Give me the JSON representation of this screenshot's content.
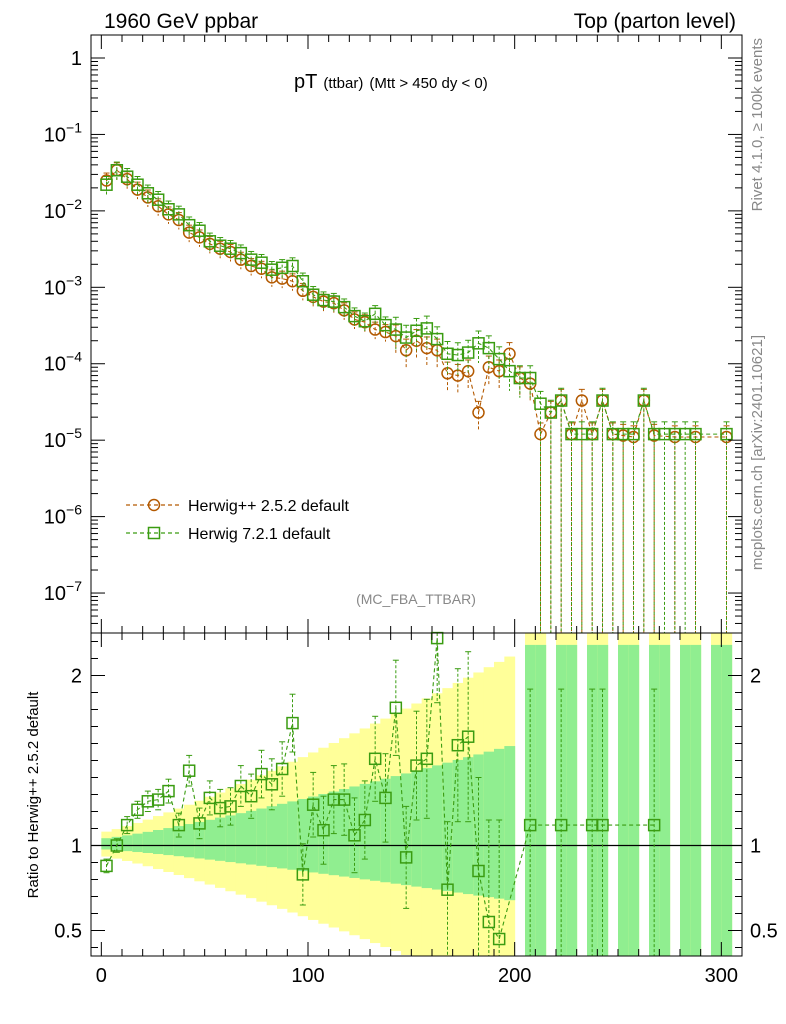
{
  "header": {
    "left": "1960 GeV ppbar",
    "right": "Top (parton level)"
  },
  "side": {
    "top_note": "Rivet 4.1.0, ≥ 100k events",
    "bottom_note": "mcplots.cern.ch [arXiv:2401.10621]"
  },
  "chart_data": [
    {
      "panel": "main",
      "type": "scatter",
      "title": "pT",
      "title_small": "(ttbar)",
      "title_cut": "(Mtt > 450 dy < 0)",
      "analysis_tag": "(MC_FBA_TTBAR)",
      "yscale": "log",
      "ylim": [
        3e-08,
        2
      ],
      "xlim": [
        -5,
        310
      ],
      "yticks": [
        1e-07,
        1e-06,
        1e-05,
        0.0001,
        0.001,
        0.01,
        0.1,
        1
      ],
      "ytick_labels": [
        {
          "base": "10",
          "exp": "−7"
        },
        {
          "base": "10",
          "exp": "−6"
        },
        {
          "base": "10",
          "exp": "−5"
        },
        {
          "base": "10",
          "exp": "−4"
        },
        {
          "base": "10",
          "exp": "−3"
        },
        {
          "base": "10",
          "exp": "−2"
        },
        {
          "base": "10",
          "exp": "−1"
        },
        {
          "base": "1",
          "exp": ""
        }
      ],
      "legend": [
        {
          "label": "Herwig++ 2.5.2 default",
          "color": "#b35900",
          "marker": "circle"
        },
        {
          "label": "Herwig 7.2.1 default",
          "color": "#3a9c11",
          "marker": "square"
        }
      ],
      "legend_position": "lower-left",
      "series": [
        {
          "name": "Herwig++ 2.5.2 default",
          "color": "#b35900",
          "x": [
            2.5,
            7.5,
            12.5,
            17.5,
            22.5,
            27.5,
            32.5,
            37.5,
            42.5,
            47.5,
            52.5,
            57.5,
            62.5,
            67.5,
            72.5,
            77.5,
            82.5,
            87.5,
            92.5,
            97.5,
            102.5,
            107.5,
            112.5,
            117.5,
            122.5,
            127.5,
            132.5,
            137.5,
            142.5,
            147.5,
            152.5,
            157.5,
            162.5,
            167.5,
            172.5,
            177.5,
            182.5,
            187.5,
            192.5,
            197.5,
            202.5,
            207.5,
            212.5,
            217.5,
            222.5,
            227.5,
            232.5,
            237.5,
            242.5,
            247.5,
            252.5,
            257.5,
            262.5,
            267.5,
            277.5,
            287.5,
            302.5
          ],
          "y": [
            0.025,
            0.034,
            0.026,
            0.019,
            0.015,
            0.0115,
            0.009,
            0.0076,
            0.0052,
            0.0045,
            0.0037,
            0.0032,
            0.0029,
            0.0023,
            0.0019,
            0.00175,
            0.00135,
            0.0013,
            0.0012,
            0.0009,
            0.00075,
            0.00065,
            0.00062,
            0.0005,
            0.00038,
            0.00035,
            0.00028,
            0.00026,
            0.00023,
            0.00015,
            0.0002,
            0.00016,
            0.00015,
            7.5e-05,
            7e-05,
            8e-05,
            2.3e-05,
            9e-05,
            8e-05,
            0.000135,
            6.5e-05,
            5.5e-05,
            1.2e-05,
            2.3e-05,
            3.3e-05,
            1.2e-05,
            3.3e-05,
            1.2e-05,
            3.3e-05,
            1.2e-05,
            1.15e-05,
            1.1e-05,
            3.3e-05,
            1.15e-05,
            1.1e-05,
            1.1e-05,
            1.1e-05
          ],
          "err_rel": 0.25
        },
        {
          "name": "Herwig 7.2.1 default",
          "color": "#3a9c11",
          "x": [
            2.5,
            7.5,
            12.5,
            17.5,
            22.5,
            27.5,
            32.5,
            37.5,
            42.5,
            47.5,
            52.5,
            57.5,
            62.5,
            67.5,
            72.5,
            77.5,
            82.5,
            87.5,
            92.5,
            97.5,
            102.5,
            107.5,
            112.5,
            117.5,
            122.5,
            127.5,
            132.5,
            137.5,
            142.5,
            147.5,
            152.5,
            157.5,
            162.5,
            167.5,
            172.5,
            177.5,
            182.5,
            187.5,
            192.5,
            197.5,
            202.5,
            207.5,
            212.5,
            217.5,
            222.5,
            227.5,
            232.5,
            237.5,
            242.5,
            247.5,
            252.5,
            257.5,
            262.5,
            267.5,
            272.5,
            277.5,
            282.5,
            287.5,
            302.5
          ],
          "y": [
            0.022,
            0.034,
            0.028,
            0.022,
            0.017,
            0.014,
            0.0105,
            0.009,
            0.0065,
            0.0055,
            0.004,
            0.0035,
            0.0032,
            0.0028,
            0.0023,
            0.0021,
            0.0017,
            0.0018,
            0.0019,
            0.0012,
            0.0008,
            0.00068,
            0.00065,
            0.00055,
            0.00042,
            0.00036,
            0.00045,
            0.00032,
            0.00028,
            0.00022,
            0.00027,
            0.00029,
            0.00021,
            0.000135,
            0.00013,
            0.00014,
            0.000185,
            0.00016,
            0.000115,
            8e-05,
            6.5e-05,
            6.5e-05,
            3e-05,
            2.3e-05,
            3.3e-05,
            1.2e-05,
            1.2e-05,
            1.2e-05,
            3.3e-05,
            1.2e-05,
            1.2e-05,
            1.2e-05,
            3.3e-05,
            1.2e-05,
            1.2e-05,
            1.2e-05,
            1.2e-05,
            1.2e-05,
            1.2e-05
          ],
          "err_rel": 0.28
        }
      ]
    },
    {
      "panel": "ratio",
      "type": "scatter",
      "ylabel": "Ratio to Herwig++ 2.5.2 default",
      "xlabel": "",
      "ylim": [
        0.35,
        2.25
      ],
      "xlim": [
        -5,
        310
      ],
      "xticks": [
        0,
        100,
        200,
        300
      ],
      "xtick_labels": [
        "0",
        "100",
        "200",
        "300"
      ],
      "yticks": [
        0.5,
        1,
        2
      ],
      "ytick_labels": [
        "0.5",
        "1",
        "2"
      ],
      "reference_line": 1,
      "band_colors": {
        "inner": "#90ee90",
        "outer": "#ffff99"
      },
      "series": [
        {
          "name": "Herwig 7.2.1 default",
          "color": "#3a9c11",
          "x": [
            2.5,
            7.5,
            12.5,
            17.5,
            22.5,
            27.5,
            32.5,
            37.5,
            42.5,
            47.5,
            52.5,
            57.5,
            62.5,
            67.5,
            72.5,
            77.5,
            82.5,
            87.5,
            92.5,
            97.5,
            102.5,
            107.5,
            112.5,
            117.5,
            122.5,
            127.5,
            132.5,
            137.5,
            142.5,
            147.5,
            152.5,
            157.5,
            162.5,
            167.5,
            172.5,
            177.5,
            182.5,
            187.5,
            192.5,
            207.5,
            222.5,
            237.5,
            242.5,
            267.5
          ],
          "y": [
            0.88,
            1.0,
            1.12,
            1.21,
            1.26,
            1.27,
            1.32,
            1.12,
            1.44,
            1.13,
            1.28,
            1.22,
            1.23,
            1.35,
            1.29,
            1.42,
            1.36,
            1.45,
            1.72,
            0.83,
            1.24,
            1.09,
            1.27,
            1.27,
            1.06,
            1.15,
            1.51,
            1.28,
            1.81,
            0.93,
            1.47,
            1.51,
            2.22,
            0.74,
            1.59,
            1.64,
            0.85,
            0.55,
            0.45,
            1.12,
            1.12,
            1.12,
            1.12,
            1.12
          ],
          "err_abs": [
            0.04,
            0.04,
            0.05,
            0.05,
            0.06,
            0.06,
            0.07,
            0.07,
            0.09,
            0.09,
            0.1,
            0.11,
            0.11,
            0.12,
            0.13,
            0.14,
            0.15,
            0.16,
            0.17,
            0.18,
            0.19,
            0.2,
            0.2,
            0.21,
            0.22,
            0.23,
            0.25,
            0.26,
            0.28,
            0.3,
            0.32,
            0.35,
            0.38,
            0.4,
            0.45,
            0.5,
            0.55,
            0.6,
            0.7,
            0.8,
            0.8,
            0.8,
            0.8,
            0.8
          ]
        }
      ]
    }
  ]
}
